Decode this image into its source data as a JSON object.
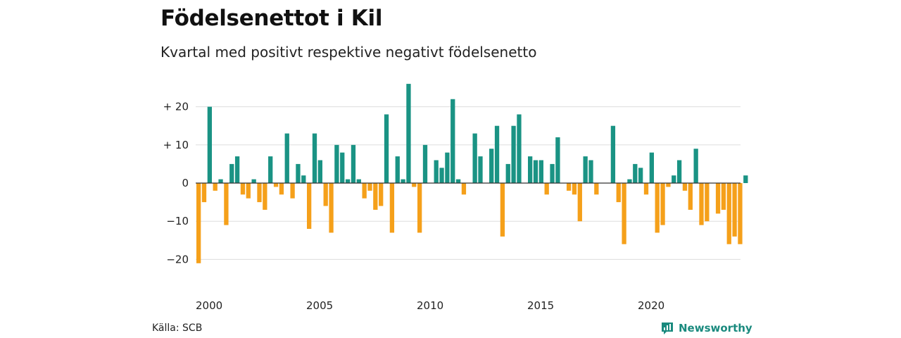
{
  "header": {
    "title": "Födelsenettot i Kil",
    "subtitle": "Kvartal med positivt respektive negativt födelsenetto"
  },
  "footer": {
    "source": "Källa: SCB",
    "brand": "Newsworthy",
    "brand_icon": "newsworthy-logo-icon"
  },
  "colors": {
    "positive": "#1a9384",
    "negative": "#f5a01a",
    "grid": "#dddddd",
    "zero_line": "#333333",
    "brand": "#1a8a7e"
  },
  "chart_data": {
    "type": "bar",
    "title": "Födelsenettot i Kil",
    "subtitle": "Kvartal med positivt respektive negativt födelsenetto",
    "xlabel": "",
    "ylabel": "",
    "ylim": [
      -25,
      28
    ],
    "grid": true,
    "y_ticks": [
      {
        "value": 20,
        "label": "+ 20"
      },
      {
        "value": 10,
        "label": "+ 10"
      },
      {
        "value": 0,
        "label": "0"
      },
      {
        "value": -10,
        "label": "−10"
      },
      {
        "value": -20,
        "label": "−20"
      }
    ],
    "x_ticks": [
      {
        "quarter_index": 0,
        "label": "2000"
      },
      {
        "quarter_index": 20,
        "label": "2005"
      },
      {
        "quarter_index": 40,
        "label": "2010"
      },
      {
        "quarter_index": 60,
        "label": "2015"
      },
      {
        "quarter_index": 80,
        "label": "2020"
      }
    ],
    "start_year": 2000,
    "quarters_per_year": 4,
    "values": [
      -21,
      -5,
      20,
      -2,
      1,
      -11,
      5,
      7,
      -3,
      -4,
      1,
      -5,
      -7,
      7,
      -1,
      -3,
      13,
      -4,
      5,
      2,
      -12,
      13,
      6,
      -6,
      -13,
      10,
      8,
      1,
      10,
      1,
      -4,
      -2,
      -7,
      -6,
      18,
      -13,
      7,
      1,
      26,
      -1,
      -13,
      10,
      0,
      6,
      4,
      8,
      22,
      1,
      -3,
      0,
      13,
      7,
      0,
      9,
      15,
      -14,
      5,
      15,
      18,
      0,
      7,
      6,
      6,
      -3,
      5,
      12,
      0,
      -2,
      -3,
      -10,
      7,
      6,
      -3,
      0,
      0,
      15,
      -5,
      -16,
      1,
      5,
      4,
      -3,
      8,
      -13,
      -11,
      -1,
      2,
      6,
      -2,
      -7,
      9,
      -11,
      -10,
      0,
      -8,
      -7,
      -16,
      -14,
      -16,
      2
    ]
  }
}
